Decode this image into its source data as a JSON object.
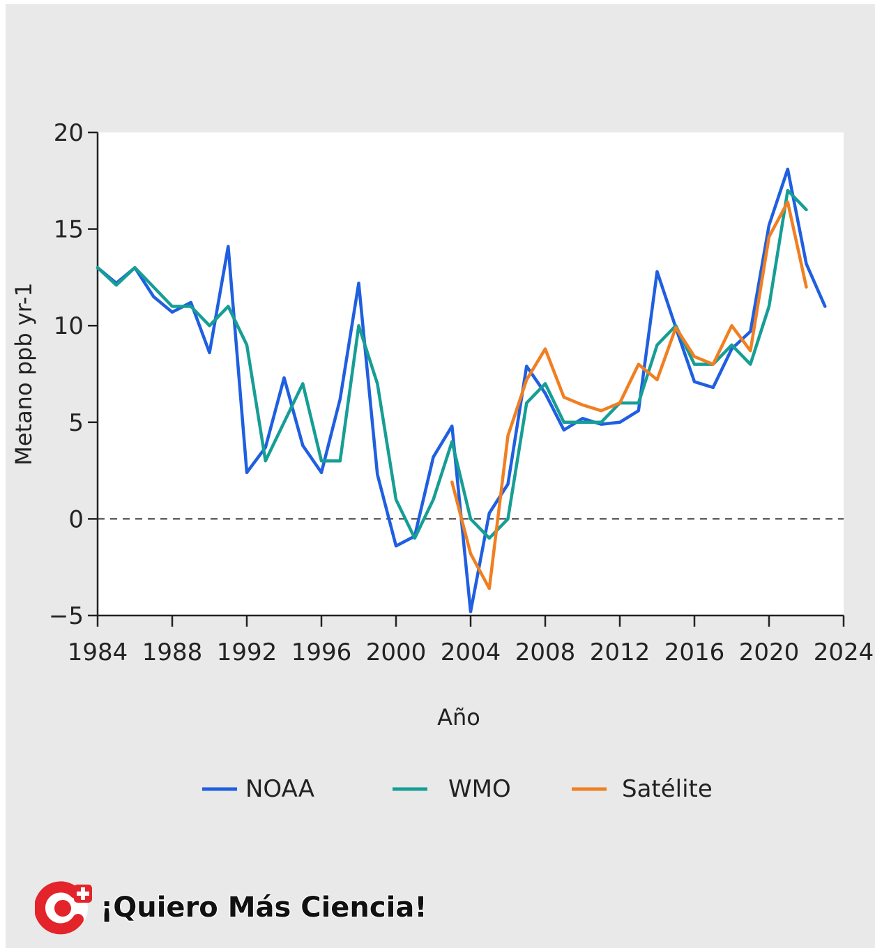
{
  "colors": {
    "NOAA": "#1f5fe0",
    "WMO": "#169e95",
    "Satélite": "#f07f22",
    "background": "#e9e9e9",
    "plot_bg": "#ffffff"
  },
  "chart_data": {
    "type": "line",
    "xlabel": "Año",
    "ylabel": "Metano ppb yr-1",
    "xlim": [
      1984,
      2024
    ],
    "ylim": [
      -5,
      20
    ],
    "xticks": [
      1984,
      1988,
      1992,
      1996,
      2000,
      2004,
      2008,
      2012,
      2016,
      2020,
      2024
    ],
    "yticks": [
      -5,
      0,
      5,
      10,
      15,
      20
    ],
    "ytick_labels": [
      "−5",
      "0",
      "5",
      "10",
      "15",
      "20"
    ],
    "reference_line": {
      "y": 0,
      "style": "dashed"
    },
    "legend_position": "bottom",
    "series": [
      {
        "name": "NOAA",
        "color": "#1f5fe0",
        "x": [
          1984,
          1985,
          1986,
          1987,
          1988,
          1989,
          1990,
          1991,
          1992,
          1993,
          1994,
          1995,
          1996,
          1997,
          1998,
          1999,
          2000,
          2001,
          2002,
          2003,
          2004,
          2005,
          2006,
          2007,
          2008,
          2009,
          2010,
          2011,
          2012,
          2013,
          2014,
          2015,
          2016,
          2017,
          2018,
          2019,
          2020,
          2021,
          2022,
          2023
        ],
        "y": [
          13.0,
          12.2,
          13.0,
          11.5,
          10.7,
          11.2,
          8.6,
          14.1,
          2.4,
          3.7,
          7.3,
          3.8,
          2.4,
          6.2,
          12.2,
          2.3,
          -1.4,
          -0.9,
          3.2,
          4.8,
          -4.8,
          0.3,
          1.8,
          7.9,
          6.5,
          4.6,
          5.2,
          4.9,
          5.0,
          5.6,
          12.8,
          9.9,
          7.1,
          6.8,
          8.8,
          9.7,
          15.2,
          18.1,
          13.2,
          11.0
        ]
      },
      {
        "name": "WMO",
        "color": "#169e95",
        "x": [
          1984,
          1985,
          1986,
          1987,
          1988,
          1989,
          1990,
          1991,
          1992,
          1993,
          1994,
          1995,
          1996,
          1997,
          1998,
          1999,
          2000,
          2001,
          2002,
          2003,
          2004,
          2005,
          2006,
          2007,
          2008,
          2009,
          2010,
          2011,
          2012,
          2013,
          2014,
          2015,
          2016,
          2017,
          2018,
          2019,
          2020,
          2021,
          2022
        ],
        "y": [
          13.0,
          12.1,
          13.0,
          12.0,
          11.0,
          11.0,
          10.0,
          11.0,
          9.0,
          3.0,
          5.0,
          7.0,
          3.0,
          3.0,
          10.0,
          7.0,
          1.0,
          -1.0,
          1.0,
          4.0,
          0.0,
          -1.0,
          0.0,
          6.0,
          7.0,
          5.0,
          5.0,
          5.0,
          6.0,
          6.0,
          9.0,
          10.0,
          8.0,
          8.0,
          9.0,
          8.0,
          11.0,
          17.0,
          16.0
        ]
      },
      {
        "name": "Satélite",
        "color": "#f07f22",
        "x": [
          2003,
          2004,
          2005,
          2006,
          2007,
          2008,
          2009,
          2010,
          2011,
          2012,
          2013,
          2014,
          2015,
          2016,
          2017,
          2018,
          2019,
          2020,
          2021,
          2022
        ],
        "y": [
          1.9,
          -1.8,
          -3.6,
          4.3,
          7.2,
          8.8,
          6.3,
          5.9,
          5.6,
          6.0,
          8.0,
          7.2,
          9.9,
          8.4,
          8.0,
          10.0,
          8.7,
          14.6,
          16.4,
          12.0
        ]
      }
    ]
  },
  "legend": [
    {
      "label": "NOAA",
      "color": "#1f5fe0"
    },
    {
      "label": "WMO",
      "color": "#169e95"
    },
    {
      "label": "Satélite",
      "color": "#f07f22"
    }
  ],
  "brand": {
    "text": "¡Quiero Más Ciencia!",
    "logo_icon": "c-plus-logo-icon",
    "logo_color": "#e3242b"
  }
}
